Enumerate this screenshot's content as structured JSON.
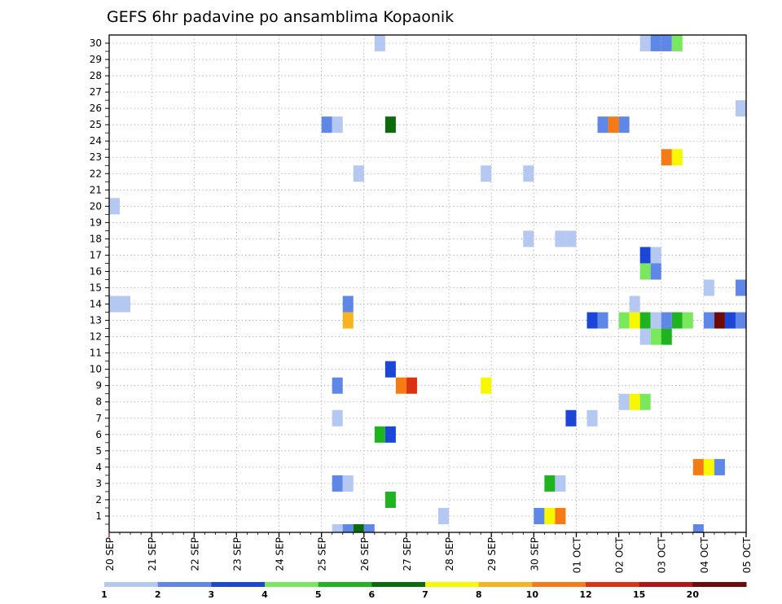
{
  "chart_data": {
    "type": "heatmap",
    "title": "GEFS 6hr padavine po ansamblima Kopaonik",
    "xlabel": "",
    "ylabel": "",
    "x_tick_labels": [
      "20 SEP",
      "21 SEP",
      "22 SEP",
      "23 SEP",
      "24 SEP",
      "25 SEP",
      "26 SEP",
      "27 SEP",
      "28 SEP",
      "29 SEP",
      "30 SEP",
      "01 OCT",
      "02 OCT",
      "03 OCT",
      "04 OCT",
      "05 OCT"
    ],
    "y_tick_labels": [
      "1",
      "2",
      "3",
      "4",
      "5",
      "6",
      "7",
      "8",
      "9",
      "10",
      "11",
      "12",
      "13",
      "14",
      "15",
      "16",
      "17",
      "18",
      "19",
      "20",
      "21",
      "22",
      "23",
      "24",
      "25",
      "26",
      "27",
      "28",
      "29",
      "30"
    ],
    "xlim_days": [
      0,
      15
    ],
    "ylim": [
      0,
      30
    ],
    "time_step_days": 0.25,
    "grid": "dotted",
    "colorbar": {
      "labels": [
        "1",
        "2",
        "3",
        "4",
        "5",
        "6",
        "7",
        "8",
        "10",
        "12",
        "15",
        "20"
      ],
      "colors": [
        "#b4c8f2",
        "#5f87e8",
        "#1c46d7",
        "#7ae85c",
        "#1fb31f",
        "#0b6b0b",
        "#f7f700",
        "#f7b41e",
        "#f57c14",
        "#dc3214",
        "#b41414",
        "#6e0a0a"
      ]
    },
    "cells": [
      {
        "m": 30,
        "t": 6.25,
        "c": 0
      },
      {
        "m": 30,
        "t": 12.5,
        "c": 0
      },
      {
        "m": 30,
        "t": 12.75,
        "c": 1
      },
      {
        "m": 30,
        "t": 13.0,
        "c": 1
      },
      {
        "m": 30,
        "t": 13.25,
        "c": 3
      },
      {
        "m": 26,
        "t": 14.75,
        "c": 0
      },
      {
        "m": 26,
        "t": 15.0,
        "c": 6
      },
      {
        "m": 25,
        "t": 5.0,
        "c": 1
      },
      {
        "m": 25,
        "t": 5.25,
        "c": 0
      },
      {
        "m": 25,
        "t": 6.5,
        "c": 5
      },
      {
        "m": 25,
        "t": 11.5,
        "c": 1
      },
      {
        "m": 25,
        "t": 11.75,
        "c": 8
      },
      {
        "m": 25,
        "t": 12.0,
        "c": 1
      },
      {
        "m": 23,
        "t": 13.0,
        "c": 8
      },
      {
        "m": 23,
        "t": 13.25,
        "c": 6
      },
      {
        "m": 22,
        "t": 5.75,
        "c": 0
      },
      {
        "m": 22,
        "t": 8.75,
        "c": 0
      },
      {
        "m": 22,
        "t": 9.75,
        "c": 0
      },
      {
        "m": 22,
        "t": 15.0,
        "c": 0
      },
      {
        "m": 20,
        "t": 0.0,
        "c": 0
      },
      {
        "m": 18,
        "t": 9.75,
        "c": 0
      },
      {
        "m": 18,
        "t": 10.5,
        "c": 0
      },
      {
        "m": 18,
        "t": 10.75,
        "c": 0
      },
      {
        "m": 17,
        "t": 12.5,
        "c": 2
      },
      {
        "m": 17,
        "t": 12.75,
        "c": 0
      },
      {
        "m": 16,
        "t": 12.5,
        "c": 3
      },
      {
        "m": 16,
        "t": 12.75,
        "c": 1
      },
      {
        "m": 15,
        "t": 14.0,
        "c": 0
      },
      {
        "m": 15,
        "t": 14.75,
        "c": 1
      },
      {
        "m": 15,
        "t": 15.0,
        "c": 6
      },
      {
        "m": 14,
        "t": 0.0,
        "c": 0
      },
      {
        "m": 14,
        "t": 0.25,
        "c": 0
      },
      {
        "m": 14,
        "t": 5.5,
        "c": 1
      },
      {
        "m": 14,
        "t": 12.25,
        "c": 0
      },
      {
        "m": 13,
        "t": 5.5,
        "c": 7
      },
      {
        "m": 13,
        "t": 11.25,
        "c": 2
      },
      {
        "m": 13,
        "t": 11.5,
        "c": 1
      },
      {
        "m": 13,
        "t": 12.0,
        "c": 3
      },
      {
        "m": 13,
        "t": 12.25,
        "c": 6
      },
      {
        "m": 13,
        "t": 12.5,
        "c": 4
      },
      {
        "m": 13,
        "t": 12.75,
        "c": 0
      },
      {
        "m": 13,
        "t": 13.0,
        "c": 1
      },
      {
        "m": 13,
        "t": 13.25,
        "c": 4
      },
      {
        "m": 13,
        "t": 13.5,
        "c": 3
      },
      {
        "m": 13,
        "t": 14.0,
        "c": 1
      },
      {
        "m": 13,
        "t": 14.25,
        "c": 11
      },
      {
        "m": 13,
        "t": 14.5,
        "c": 2
      },
      {
        "m": 13,
        "t": 14.75,
        "c": 1
      },
      {
        "m": 12,
        "t": 12.5,
        "c": 0
      },
      {
        "m": 12,
        "t": 12.75,
        "c": 3
      },
      {
        "m": 12,
        "t": 13.0,
        "c": 4
      },
      {
        "m": 10,
        "t": 6.5,
        "c": 2
      },
      {
        "m": 9,
        "t": 5.25,
        "c": 1
      },
      {
        "m": 9,
        "t": 6.75,
        "c": 8
      },
      {
        "m": 9,
        "t": 7.0,
        "c": 9
      },
      {
        "m": 9,
        "t": 8.75,
        "c": 6
      },
      {
        "m": 8,
        "t": 12.0,
        "c": 0
      },
      {
        "m": 8,
        "t": 12.25,
        "c": 6
      },
      {
        "m": 8,
        "t": 12.5,
        "c": 3
      },
      {
        "m": 7,
        "t": 5.25,
        "c": 0
      },
      {
        "m": 7,
        "t": 10.75,
        "c": 2
      },
      {
        "m": 7,
        "t": 11.25,
        "c": 0
      },
      {
        "m": 6,
        "t": 6.25,
        "c": 4
      },
      {
        "m": 6,
        "t": 6.5,
        "c": 2
      },
      {
        "m": 6,
        "t": 15.0,
        "c": 9
      },
      {
        "m": 4,
        "t": 13.75,
        "c": 8
      },
      {
        "m": 4,
        "t": 14.0,
        "c": 6
      },
      {
        "m": 4,
        "t": 14.25,
        "c": 1
      },
      {
        "m": 3,
        "t": 5.25,
        "c": 1
      },
      {
        "m": 3,
        "t": 5.5,
        "c": 0
      },
      {
        "m": 3,
        "t": 10.25,
        "c": 4
      },
      {
        "m": 3,
        "t": 10.5,
        "c": 0
      },
      {
        "m": 2,
        "t": 6.5,
        "c": 4
      },
      {
        "m": 1,
        "t": 7.75,
        "c": 0
      },
      {
        "m": 1,
        "t": 10.0,
        "c": 1
      },
      {
        "m": 1,
        "t": 10.25,
        "c": 6
      },
      {
        "m": 1,
        "t": 10.5,
        "c": 8
      },
      {
        "m": 0,
        "t": 5.25,
        "c": 0
      },
      {
        "m": 0,
        "t": 5.5,
        "c": 1
      },
      {
        "m": 0,
        "t": 5.75,
        "c": 5
      },
      {
        "m": 0,
        "t": 6.0,
        "c": 1
      },
      {
        "m": 0,
        "t": 13.75,
        "c": 1
      }
    ]
  }
}
